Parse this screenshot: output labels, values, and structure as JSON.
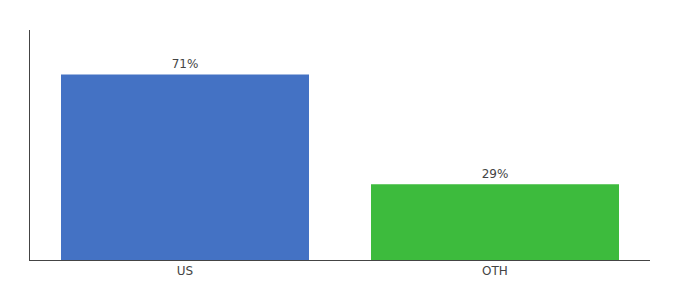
{
  "chart_data": {
    "type": "bar",
    "categories": [
      "US",
      "OTH"
    ],
    "values": [
      71,
      29
    ],
    "value_labels": [
      "71%",
      "29%"
    ],
    "data_labels": true,
    "colors": [
      "#4472c4",
      "#3dbb3d"
    ],
    "ylim": [
      0,
      88
    ],
    "tick_labels": "x",
    "grid": false
  }
}
